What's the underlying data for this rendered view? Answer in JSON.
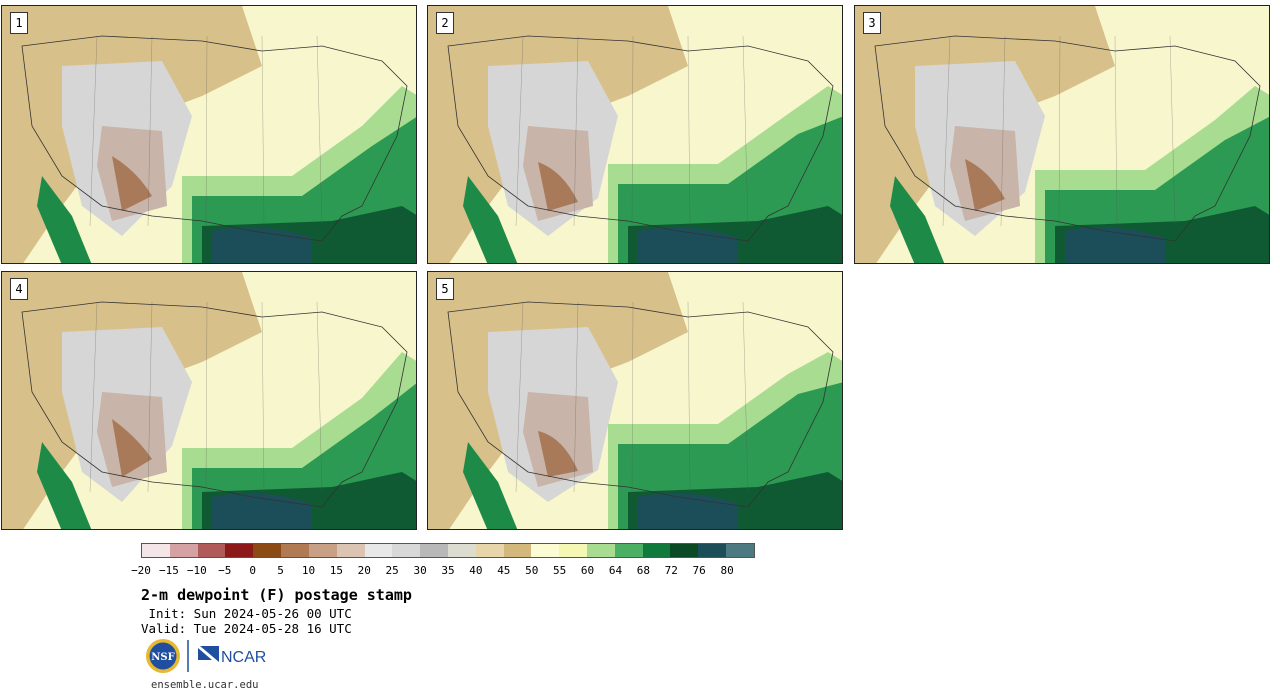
{
  "panels": [
    {
      "label": "1"
    },
    {
      "label": "2"
    },
    {
      "label": "3"
    },
    {
      "label": "4"
    },
    {
      "label": "5"
    }
  ],
  "colorbar": {
    "colors": [
      "#f4e6e6",
      "#d4a2a2",
      "#b05a5a",
      "#8c1a1a",
      "#8c4a14",
      "#b07a52",
      "#c8a086",
      "#dcc4b2",
      "#e8e8e8",
      "#d8d8d8",
      "#b8b8b8",
      "#dcdcd0",
      "#e6d6aa",
      "#d2b87c",
      "#fcfcd4",
      "#f4f8b4",
      "#a8dc90",
      "#4cb064",
      "#107a3a",
      "#0a4a24",
      "#1c4e5a",
      "#4c7a80"
    ],
    "ticks": [
      "−20",
      "−15",
      "−10",
      "−5",
      "0",
      "5",
      "10",
      "15",
      "20",
      "25",
      "30",
      "35",
      "40",
      "45",
      "50",
      "55",
      "60",
      "64",
      "68",
      "72",
      "76",
      "80"
    ]
  },
  "title": "2-m dewpoint (F) postage stamp",
  "init_line": " Init: Sun 2024-05-26 00 UTC",
  "valid_line": "Valid: Tue 2024-05-28 16 UTC",
  "logos": {
    "nsf": "NSF",
    "ncar": "NCAR"
  },
  "site": "ensemble.ucar.edu"
}
